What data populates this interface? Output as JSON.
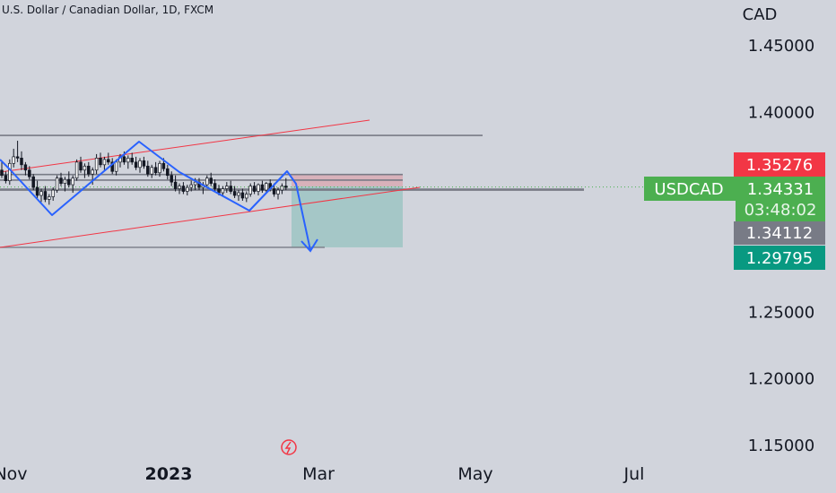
{
  "header": {
    "title": "U.S. Dollar / Canadian Dollar, 1D, FXCM"
  },
  "chart_data": {
    "type": "candlestick",
    "symbol": "USDCAD",
    "currency": "CAD",
    "y_ticks": [
      "1.45000",
      "1.40000",
      "1.25000",
      "1.20000",
      "1.15000"
    ],
    "x_ticks": [
      "Nov",
      "2023",
      "Mar",
      "May",
      "Jul"
    ],
    "price_tags": {
      "stop": "1.35276",
      "last_symbol": "USDCAD",
      "last": "1.34331",
      "countdown": "03:48:02",
      "entry": "1.34112",
      "target": "1.29795"
    },
    "levels": {
      "resistance": 1.382,
      "zone_top": 1.3527,
      "zone_bottom": 1.3485,
      "support": 1.3413,
      "target": 1.298
    },
    "colors": {
      "background": "#d1d4dc",
      "stop_tag": "#f23645",
      "last_tag": "#4caf50",
      "entry_tag": "#787b86",
      "target_tag": "#089981",
      "pattern": "#2962ff",
      "trend": "#f23645",
      "level": "#787b86"
    },
    "candles": [
      [
        1.356,
        1.362,
        1.35,
        1.352
      ],
      [
        1.352,
        1.355,
        1.346,
        1.348
      ],
      [
        1.348,
        1.364,
        1.345,
        1.361
      ],
      [
        1.361,
        1.372,
        1.358,
        1.366
      ],
      [
        1.366,
        1.378,
        1.362,
        1.365
      ],
      [
        1.365,
        1.37,
        1.356,
        1.36
      ],
      [
        1.36,
        1.362,
        1.352,
        1.356
      ],
      [
        1.356,
        1.359,
        1.349,
        1.351
      ],
      [
        1.351,
        1.353,
        1.341,
        1.343
      ],
      [
        1.343,
        1.348,
        1.335,
        1.337
      ],
      [
        1.337,
        1.342,
        1.332,
        1.34
      ],
      [
        1.34,
        1.344,
        1.332,
        1.334
      ],
      [
        1.334,
        1.338,
        1.33,
        1.336
      ],
      [
        1.336,
        1.343,
        1.333,
        1.341
      ],
      [
        1.341,
        1.352,
        1.339,
        1.35
      ],
      [
        1.35,
        1.354,
        1.344,
        1.346
      ],
      [
        1.346,
        1.351,
        1.34,
        1.349
      ],
      [
        1.349,
        1.355,
        1.343,
        1.345
      ],
      [
        1.345,
        1.352,
        1.339,
        1.35
      ],
      [
        1.35,
        1.364,
        1.348,
        1.362
      ],
      [
        1.362,
        1.366,
        1.354,
        1.356
      ],
      [
        1.356,
        1.361,
        1.35,
        1.359
      ],
      [
        1.359,
        1.362,
        1.351,
        1.353
      ],
      [
        1.353,
        1.358,
        1.345,
        1.356
      ],
      [
        1.356,
        1.368,
        1.353,
        1.365
      ],
      [
        1.365,
        1.369,
        1.358,
        1.36
      ],
      [
        1.36,
        1.366,
        1.356,
        1.364
      ],
      [
        1.364,
        1.369,
        1.36,
        1.362
      ],
      [
        1.362,
        1.365,
        1.353,
        1.355
      ],
      [
        1.355,
        1.364,
        1.352,
        1.362
      ],
      [
        1.362,
        1.368,
        1.358,
        1.366
      ],
      [
        1.366,
        1.37,
        1.36,
        1.362
      ],
      [
        1.362,
        1.367,
        1.357,
        1.365
      ],
      [
        1.365,
        1.369,
        1.36,
        1.362
      ],
      [
        1.362,
        1.366,
        1.356,
        1.358
      ],
      [
        1.358,
        1.365,
        1.354,
        1.363
      ],
      [
        1.363,
        1.366,
        1.357,
        1.359
      ],
      [
        1.359,
        1.363,
        1.351,
        1.353
      ],
      [
        1.353,
        1.36,
        1.35,
        1.358
      ],
      [
        1.358,
        1.362,
        1.352,
        1.354
      ],
      [
        1.354,
        1.363,
        1.351,
        1.361
      ],
      [
        1.361,
        1.365,
        1.355,
        1.357
      ],
      [
        1.357,
        1.36,
        1.349,
        1.352
      ],
      [
        1.352,
        1.355,
        1.344,
        1.347
      ],
      [
        1.347,
        1.352,
        1.34,
        1.342
      ],
      [
        1.342,
        1.346,
        1.338,
        1.344
      ],
      [
        1.344,
        1.347,
        1.338,
        1.34
      ],
      [
        1.34,
        1.345,
        1.337,
        1.343
      ],
      [
        1.343,
        1.348,
        1.34,
        1.345
      ],
      [
        1.345,
        1.35,
        1.341,
        1.347
      ],
      [
        1.347,
        1.35,
        1.341,
        1.343
      ],
      [
        1.343,
        1.347,
        1.338,
        1.345
      ],
      [
        1.345,
        1.352,
        1.343,
        1.35
      ],
      [
        1.35,
        1.354,
        1.344,
        1.346
      ],
      [
        1.346,
        1.349,
        1.34,
        1.342
      ],
      [
        1.342,
        1.345,
        1.337,
        1.339
      ],
      [
        1.339,
        1.344,
        1.336,
        1.342
      ],
      [
        1.342,
        1.347,
        1.339,
        1.344
      ],
      [
        1.344,
        1.348,
        1.338,
        1.34
      ],
      [
        1.34,
        1.344,
        1.335,
        1.337
      ],
      [
        1.337,
        1.341,
        1.333,
        1.339
      ],
      [
        1.339,
        1.342,
        1.333,
        1.335
      ],
      [
        1.335,
        1.34,
        1.332,
        1.338
      ],
      [
        1.338,
        1.346,
        1.336,
        1.344
      ],
      [
        1.344,
        1.347,
        1.338,
        1.34
      ],
      [
        1.34,
        1.346,
        1.337,
        1.345
      ],
      [
        1.345,
        1.348,
        1.339,
        1.341
      ],
      [
        1.341,
        1.347,
        1.339,
        1.346
      ],
      [
        1.346,
        1.349,
        1.34,
        1.342
      ],
      [
        1.342,
        1.346,
        1.336,
        1.338
      ],
      [
        1.338,
        1.343,
        1.334,
        1.341
      ],
      [
        1.341,
        1.346,
        1.338,
        1.344
      ],
      [
        1.344,
        1.35,
        1.341,
        1.343
      ]
    ]
  }
}
